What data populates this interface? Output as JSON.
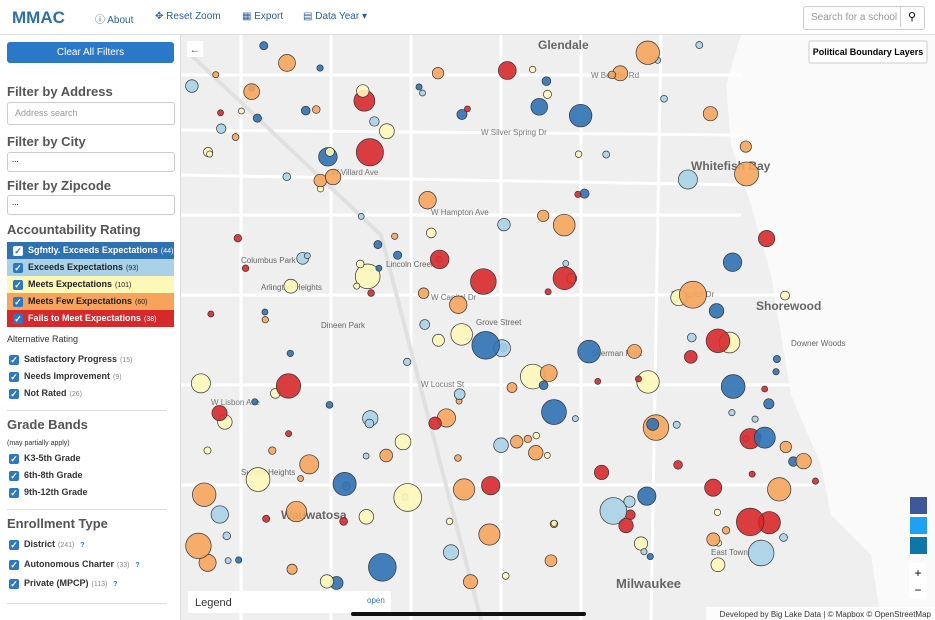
{
  "header": {
    "logo": "MMAC",
    "nav": [
      "About",
      "Reset Zoom",
      "Export",
      "Data Year"
    ],
    "search_placeholder": "Search for a school"
  },
  "sidebar": {
    "clear_button": "Clear All Filters",
    "address": {
      "title": "Filter by Address",
      "placeholder": "Address search"
    },
    "city": {
      "title": "Filter by City",
      "value": "..."
    },
    "zipcode": {
      "title": "Filter by Zipcode",
      "value": "..."
    },
    "accountability": {
      "title": "Accountability Rating",
      "items": [
        {
          "label": "Sgfntly. Exceeds Expectations",
          "count": "(44)",
          "color": "#2f72b4"
        },
        {
          "label": "Exceeds Expectations",
          "count": "(93)",
          "color": "#a9d1e8"
        },
        {
          "label": "Meets Expectations",
          "count": "(101)",
          "color": "#fdf7b8"
        },
        {
          "label": "Meets Few Expectations",
          "count": "(60)",
          "color": "#f6a45c"
        },
        {
          "label": "Fails to Meet Expectations",
          "count": "(38)",
          "color": "#d7282c"
        }
      ]
    },
    "alternative": {
      "title": "Alternative Rating",
      "items": [
        {
          "label": "Satisfactory Progress",
          "count": "(15)"
        },
        {
          "label": "Needs Improvement",
          "count": "(9)"
        },
        {
          "label": "Not Rated",
          "count": "(26)"
        }
      ]
    },
    "grade_bands": {
      "title": "Grade Bands",
      "note": "(may partially apply)",
      "items": [
        {
          "label": "K3-5th Grade"
        },
        {
          "label": "6th-8th Grade"
        },
        {
          "label": "9th-12th Grade"
        }
      ]
    },
    "enrollment": {
      "title": "Enrollment Type",
      "items": [
        {
          "label": "District",
          "count": "(241)"
        },
        {
          "label": "Autonomous Charter",
          "count": "(33)"
        },
        {
          "label": "Private (MPCP)",
          "count": "(113)"
        }
      ]
    }
  },
  "map": {
    "layers_button": "Political Boundary Layers",
    "legend": "Legend",
    "legend_toggle": "open",
    "attribution": "Developed by Big Lake Data | © Mapbox © OpenStreetMap",
    "zoom": [
      "+",
      "−"
    ],
    "places": [
      "Glendale",
      "Whitefish Bay",
      "Shorewood",
      "Wauwatosa",
      "Milwaukee",
      "Columbus Park",
      "Sunset Heights",
      "Dineen Park",
      "Grove Street",
      "Sherman Park",
      "Downer Woods",
      "East Town",
      "Lincoln Creek",
      "Arlington Heights"
    ],
    "streets": [
      "W Bender Rd",
      "W Silver Spring Dr",
      "W Villard Ave",
      "W Hampton Ave",
      "W Capitol Dr",
      "E Capitol Dr",
      "W Locust St",
      "W Lisbon Ave"
    ]
  }
}
